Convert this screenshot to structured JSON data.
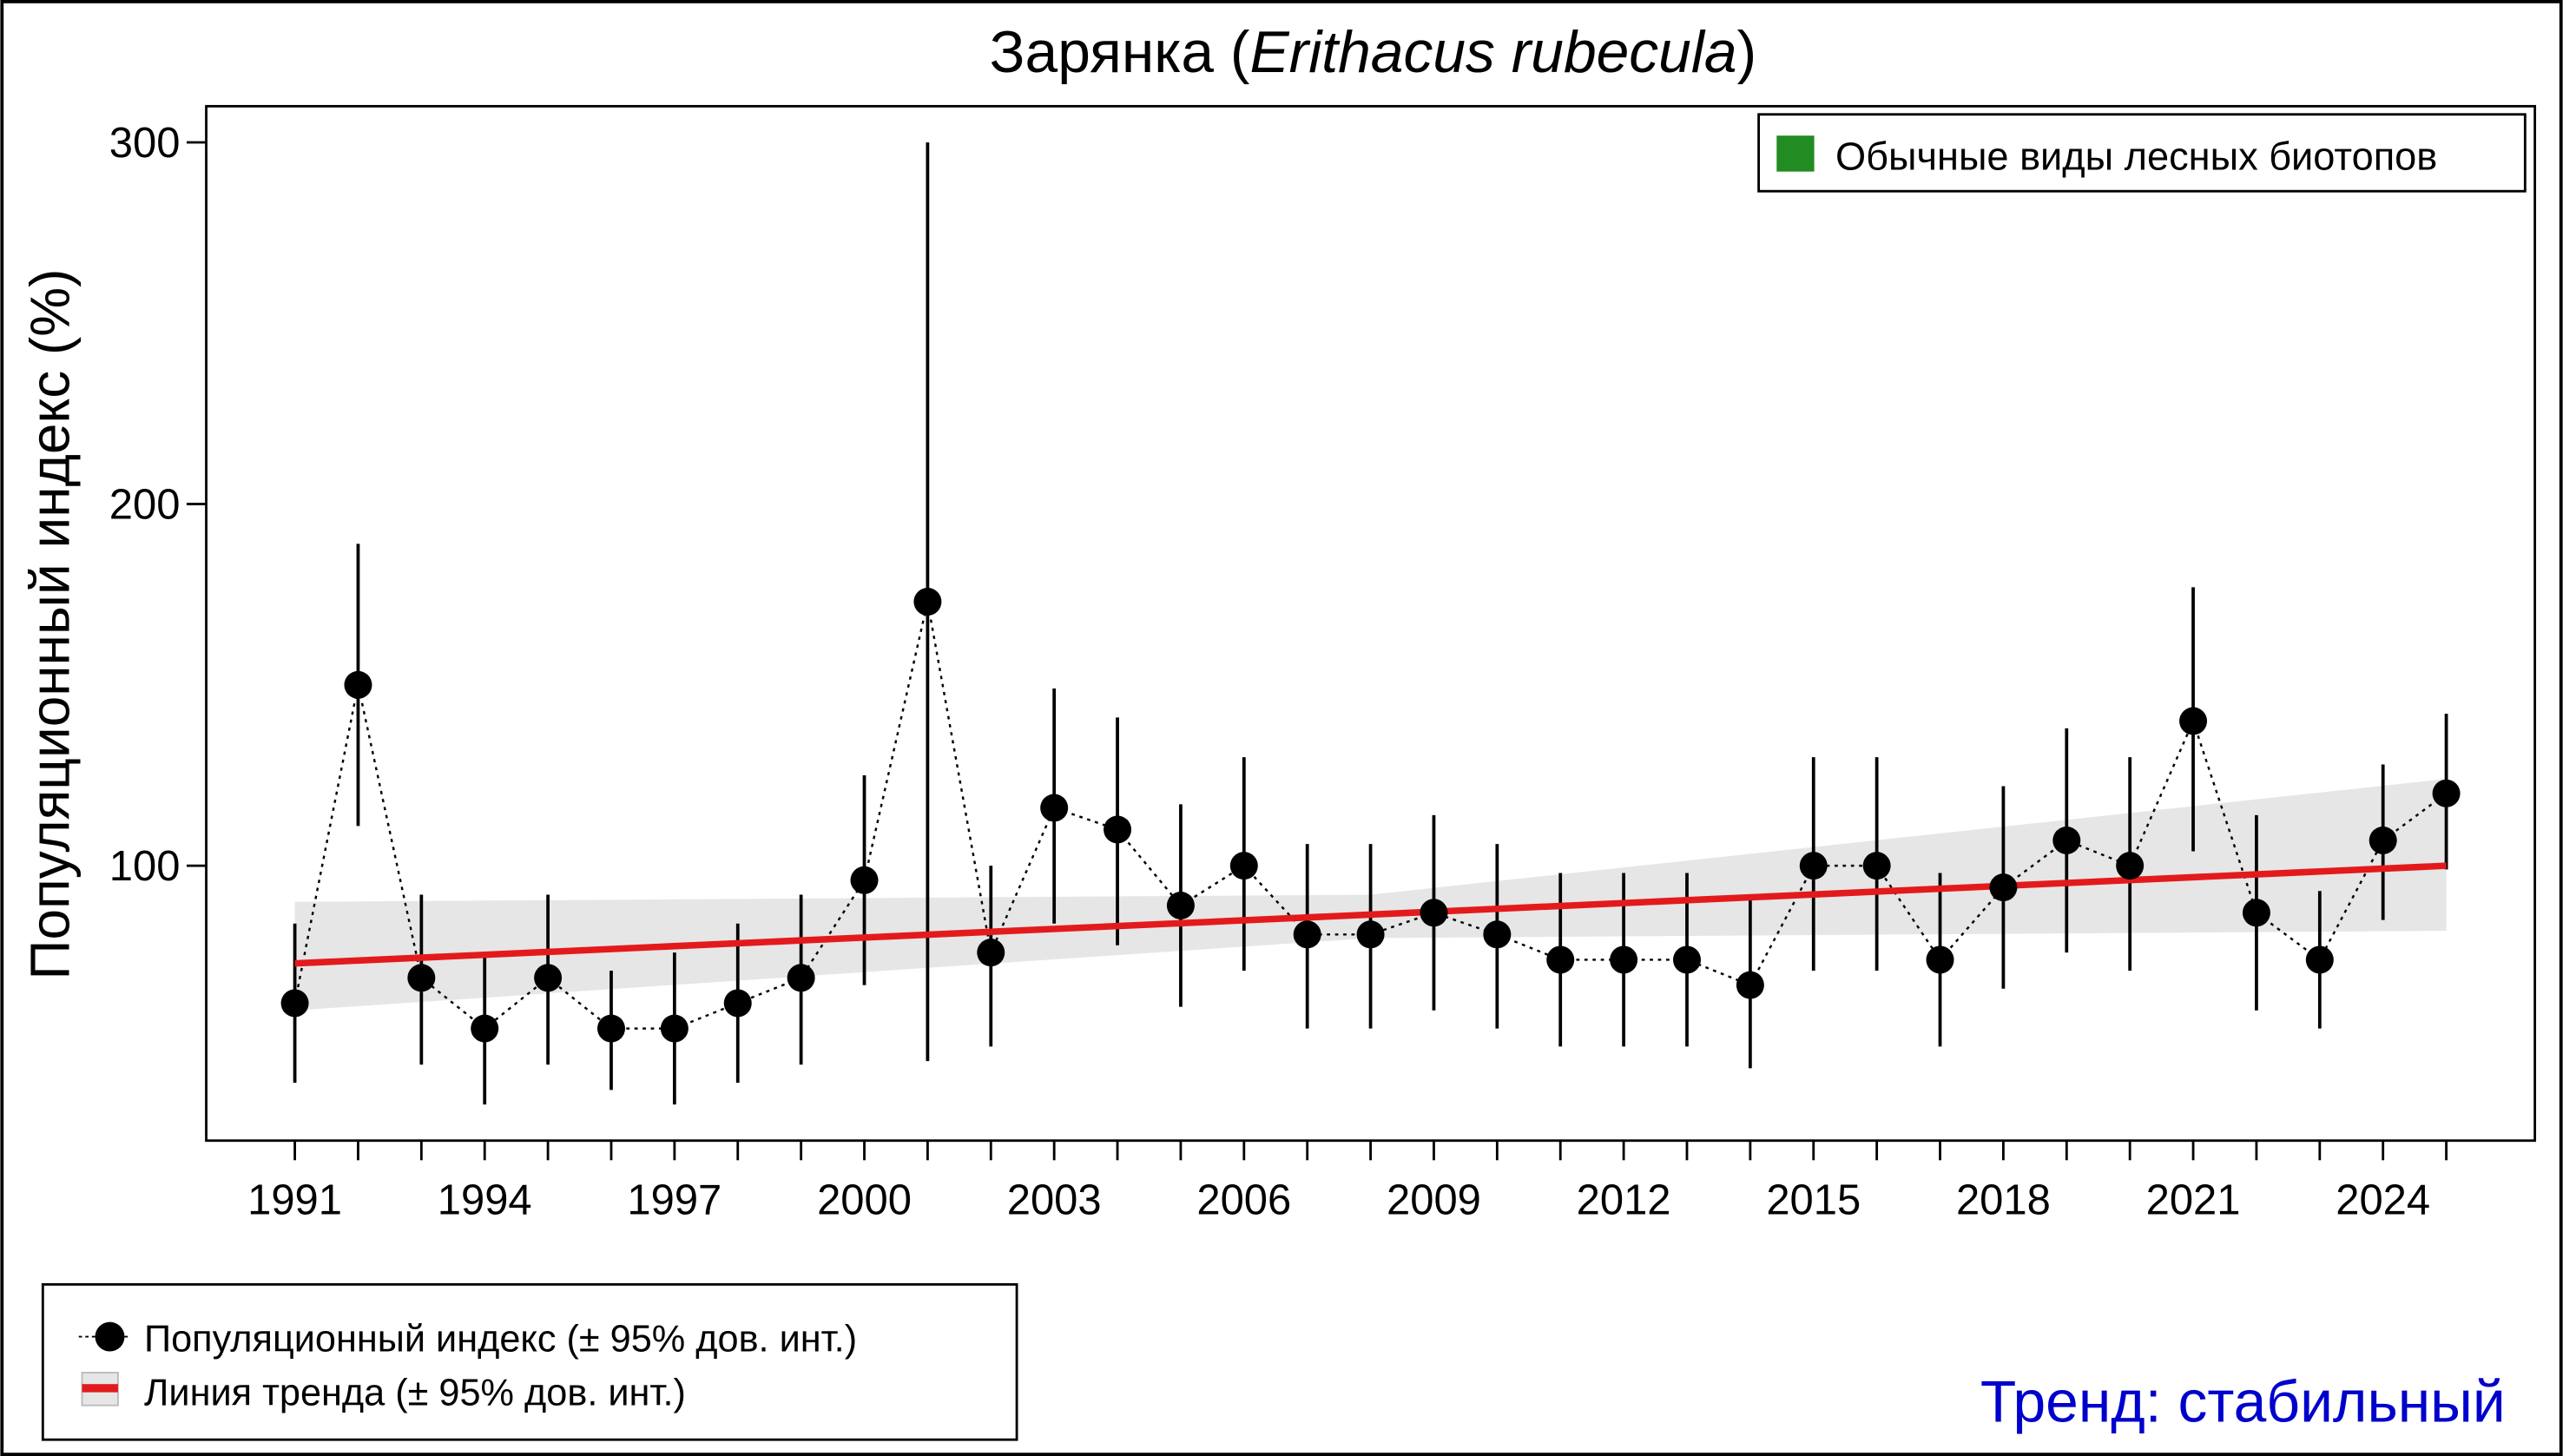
{
  "chart_data": {
    "type": "line",
    "title_main": "Зарянка (",
    "title_latin": "Erithacus rubecula",
    "title_close": ")",
    "ylabel": "Популяционный индекс (%)",
    "xlabel": "",
    "xlim": [
      1989.6,
      2026.4
    ],
    "ylim": [
      24,
      310
    ],
    "grid": false,
    "yticks": [
      100,
      200,
      300
    ],
    "xtick_labels": [
      1991,
      1994,
      1997,
      2000,
      2003,
      2006,
      2009,
      2012,
      2015,
      2018,
      2021,
      2024
    ],
    "x": [
      1991,
      1992,
      1993,
      1994,
      1995,
      1996,
      1997,
      1998,
      1999,
      2000,
      2001,
      2002,
      2003,
      2004,
      2005,
      2006,
      2007,
      2008,
      2009,
      2010,
      2011,
      2012,
      2013,
      2014,
      2015,
      2016,
      2017,
      2018,
      2019,
      2020,
      2021,
      2022,
      2023,
      2024,
      2025
    ],
    "series": [
      {
        "index": [
          62,
          150,
          69,
          55,
          69,
          55,
          55,
          62,
          69,
          96,
          173,
          76,
          116,
          110,
          89,
          100,
          81,
          81,
          87,
          81,
          74,
          74,
          74,
          67,
          100,
          100,
          74,
          94,
          107,
          100,
          140,
          87,
          74,
          107,
          120
        ],
        "lower": [
          40,
          111,
          45,
          34,
          45,
          38,
          34,
          40,
          45,
          67,
          46,
          50,
          84,
          78,
          61,
          71,
          55,
          55,
          60,
          55,
          50,
          50,
          50,
          44,
          71,
          71,
          50,
          66,
          76,
          71,
          104,
          60,
          55,
          85,
          99
        ],
        "upper": [
          84,
          189,
          92,
          76,
          92,
          71,
          76,
          84,
          92,
          125,
          300,
          100,
          149,
          141,
          117,
          130,
          106,
          106,
          114,
          106,
          98,
          98,
          98,
          91,
          130,
          130,
          98,
          122,
          138,
          130,
          177,
          114,
          93,
          128,
          142
        ]
      }
    ],
    "trend": {
      "x": [
        1991,
        2008,
        2025
      ],
      "value": [
        73,
        86.5,
        100
      ],
      "lower": [
        60,
        80,
        82
      ],
      "upper": [
        90,
        92,
        124
      ]
    },
    "legend_top": {
      "label": "Обычные виды лесных биотопов",
      "color": "#228b22",
      "placement": "top-right"
    },
    "legend_bottom": {
      "index_label": "Популяционный индекс (± 95% дов. инт.)",
      "trend_label": "Линия тренда (± 95% дов. инт.)",
      "placement": "bottom-left"
    },
    "trend_text": "Тренд: стабильный",
    "colors": {
      "trend": "#e31a1c",
      "band": "#e6e6e6",
      "points": "#000000",
      "trend_text": "#0000cc"
    }
  }
}
